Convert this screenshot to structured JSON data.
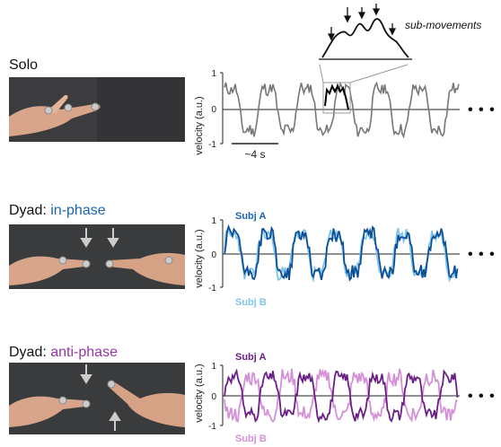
{
  "panels": [
    {
      "title_main": "Solo",
      "title_mode": "",
      "mode_color": "#1a64b0",
      "ylabel": "velocity (a.u.)",
      "yticks": [
        "1",
        "0",
        "-1"
      ],
      "scalebar": "~4 s",
      "series": [
        {
          "name": "",
          "color": "#777777"
        },
        {
          "name": "",
          "color": "#000000"
        }
      ]
    },
    {
      "title_main": "Dyad: ",
      "title_mode": "in-phase",
      "mode_color": "#1a64b0",
      "ylabel": "velocity (a.u.)",
      "yticks": [
        "1",
        "0",
        "-1"
      ],
      "series": [
        {
          "name": "Subj A",
          "color": "#0d4f96"
        },
        {
          "name": "Subj B",
          "color": "#7ec3ea"
        }
      ]
    },
    {
      "title_main": "Dyad: ",
      "title_mode": "anti-phase",
      "mode_color": "#9436a6",
      "ylabel": "velocity (a.u.)",
      "yticks": [
        "1",
        "0",
        "-1"
      ],
      "series": [
        {
          "name": "Subj A",
          "color": "#6a1f86"
        },
        {
          "name": "Subj B",
          "color": "#d58fd8"
        }
      ]
    }
  ],
  "inset_label": "sub-movements",
  "ellipsis": "• • •",
  "icons": [
    "marker-dot",
    "down-arrow",
    "up-arrow"
  ]
}
